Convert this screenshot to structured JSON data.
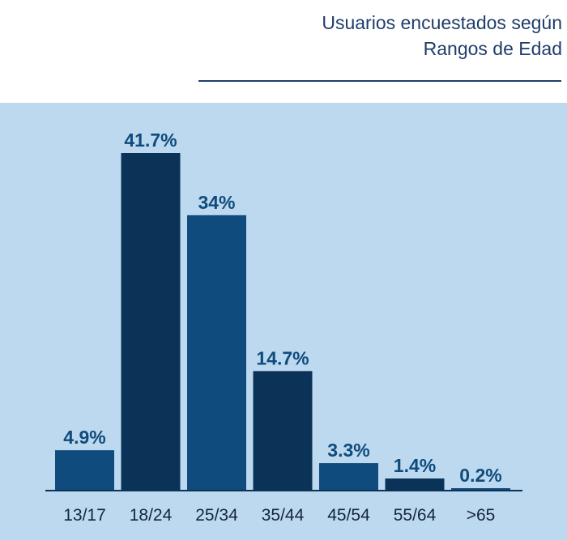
{
  "title": {
    "line1": "Usuarios encuestados según",
    "line2": "Rangos de Edad"
  },
  "colors": {
    "panel_background": "#bcd9ef",
    "title_text": "#1f3d6b",
    "bar_dark": "#0b3358",
    "bar_mid": "#0f4b7c",
    "value_label": "#0f4b7c",
    "axis_label": "#14263f"
  },
  "chart_data": {
    "type": "bar",
    "title": "Usuarios encuestados según Rangos de Edad",
    "categories": [
      "13/17",
      "18/24",
      "25/34",
      "35/44",
      "45/54",
      "55/64",
      ">65"
    ],
    "values": [
      4.9,
      41.7,
      34,
      14.7,
      3.3,
      1.4,
      0.2
    ],
    "value_labels": [
      "4.9%",
      "41.7%",
      "34%",
      "14.7%",
      "3.3%",
      "1.4%",
      "0.2%"
    ],
    "bar_color_keys": [
      "bar_mid",
      "bar_dark",
      "bar_mid",
      "bar_dark",
      "bar_mid",
      "bar_dark",
      "bar_mid"
    ],
    "xlabel": "",
    "ylabel": "",
    "ylim": [
      0,
      41.7
    ],
    "grid": false,
    "legend": "none"
  }
}
